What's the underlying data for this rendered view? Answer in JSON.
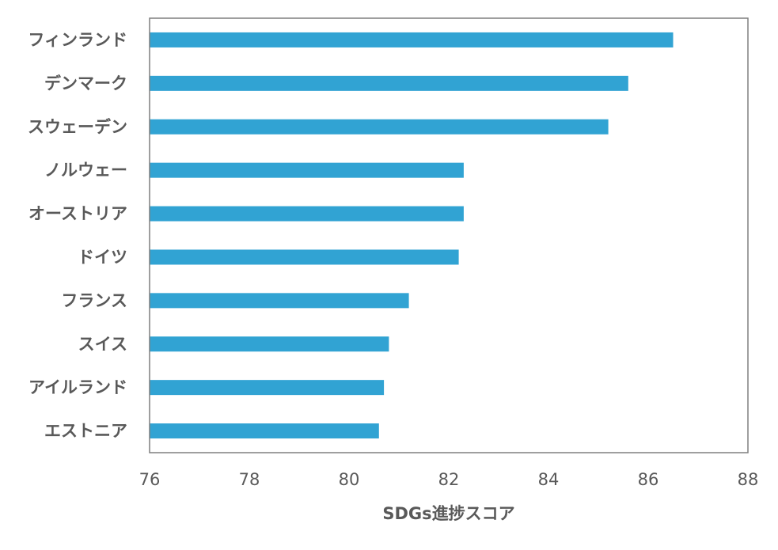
{
  "chart_data": {
    "type": "bar",
    "orientation": "horizontal",
    "categories": [
      "フィンランド",
      "デンマーク",
      "スウェーデン",
      "ノルウェー",
      "オーストリア",
      "ドイツ",
      "フランス",
      "スイス",
      "アイルランド",
      "エストニア"
    ],
    "values": [
      86.5,
      85.6,
      85.2,
      82.3,
      82.3,
      82.2,
      81.2,
      80.8,
      80.7,
      80.6
    ],
    "xlabel": "SDGs進捗スコア",
    "ylabel": "",
    "title": "",
    "xlim": [
      76,
      88
    ],
    "xticks": [
      "76",
      "78",
      "80",
      "82",
      "84",
      "86",
      "88"
    ],
    "grid": false,
    "bar_color": "#31a3d3",
    "frame_color": "#7f7f7f"
  }
}
